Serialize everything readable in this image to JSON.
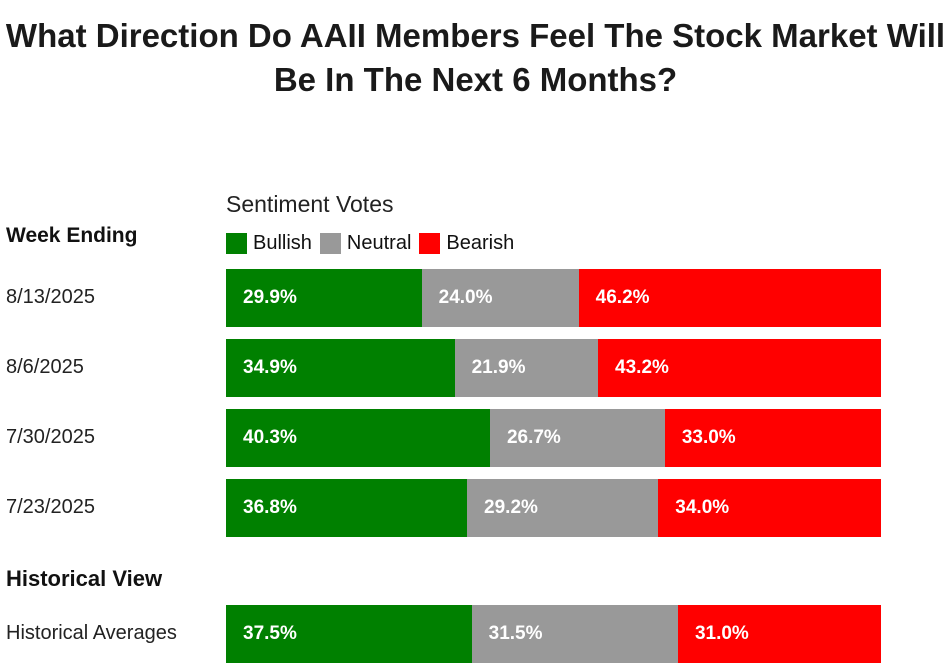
{
  "chart_data": {
    "type": "bar",
    "orientation": "horizontal",
    "stacked": true,
    "title": "What Direction Do AAII Members Feel The Stock Market Will Be In The Next 6 Months?",
    "subtitle": "Sentiment Votes",
    "row_header": "Week Ending",
    "section_header": "Historical View",
    "legend_position": "top",
    "series_names": [
      "Bullish",
      "Neutral",
      "Bearish"
    ],
    "colors": [
      "#008000",
      "#999999",
      "#ff0000"
    ],
    "rows": [
      {
        "label": "8/13/2025",
        "values": [
          29.9,
          24.0,
          46.2
        ],
        "labels": [
          "29.9%",
          "24.0%",
          "46.2%"
        ]
      },
      {
        "label": "8/6/2025",
        "values": [
          34.9,
          21.9,
          43.2
        ],
        "labels": [
          "34.9%",
          "21.9%",
          "43.2%"
        ]
      },
      {
        "label": "7/30/2025",
        "values": [
          40.3,
          26.7,
          33.0
        ],
        "labels": [
          "40.3%",
          "26.7%",
          "33.0%"
        ]
      },
      {
        "label": "7/23/2025",
        "values": [
          36.8,
          29.2,
          34.0
        ],
        "labels": [
          "36.8%",
          "29.2%",
          "34.0%"
        ]
      }
    ],
    "historical": {
      "label": "Historical Averages",
      "values": [
        37.5,
        31.5,
        31.0
      ],
      "labels": [
        "37.5%",
        "31.5%",
        "31.0%"
      ]
    }
  }
}
